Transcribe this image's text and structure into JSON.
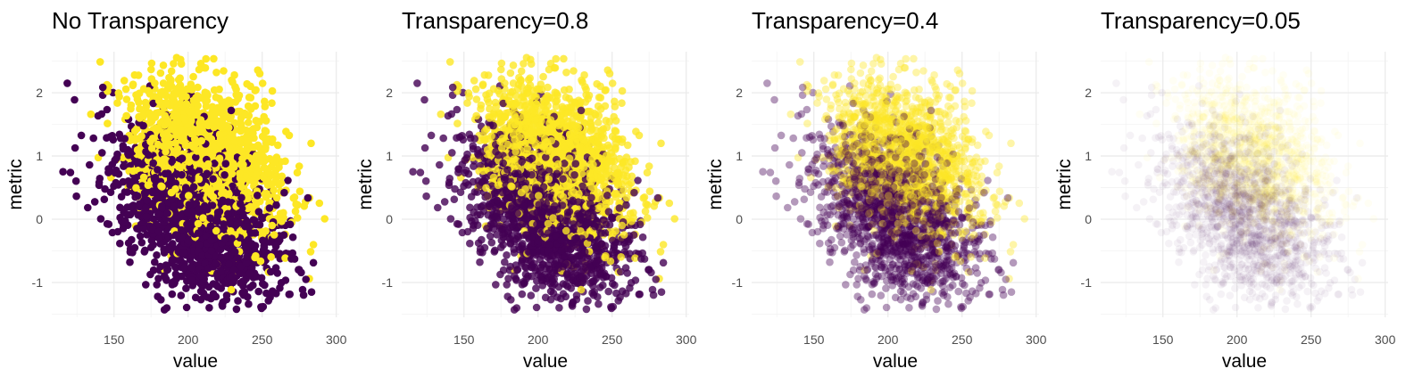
{
  "chart_data": [
    {
      "type": "scatter",
      "title": "No Transparency",
      "xlabel": "value",
      "ylabel": "metric",
      "alpha": 1.0,
      "xlim": [
        108,
        302
      ],
      "ylim": [
        -1.55,
        2.65
      ],
      "x_ticks": [
        150,
        200,
        250,
        300
      ],
      "y_ticks": [
        -1,
        0,
        1,
        2
      ],
      "grid": true,
      "legend": "none",
      "series": [
        {
          "group": "purple",
          "color": "#440154",
          "x_mean": 205,
          "x_sd": 28,
          "y_mean": 0.05,
          "y_sd": 0.72,
          "corr": -0.45,
          "n": 1500
        },
        {
          "group": "yellow",
          "color": "#fde725",
          "x_mean": 212,
          "x_sd": 26,
          "y_mean": 0.95,
          "y_sd": 0.62,
          "corr": -0.35,
          "n": 1500
        }
      ]
    },
    {
      "type": "scatter",
      "title": "Transparency=0.8",
      "xlabel": "value",
      "ylabel": "metric",
      "alpha": 0.8,
      "xlim": [
        108,
        302
      ],
      "ylim": [
        -1.55,
        2.65
      ],
      "x_ticks": [
        150,
        200,
        250,
        300
      ],
      "y_ticks": [
        -1,
        0,
        1,
        2
      ],
      "grid": true,
      "legend": "none",
      "series": [
        {
          "group": "purple",
          "color": "#440154",
          "x_mean": 205,
          "x_sd": 28,
          "y_mean": 0.05,
          "y_sd": 0.72,
          "corr": -0.45,
          "n": 1500
        },
        {
          "group": "yellow",
          "color": "#fde725",
          "x_mean": 212,
          "x_sd": 26,
          "y_mean": 0.95,
          "y_sd": 0.62,
          "corr": -0.35,
          "n": 1500
        }
      ]
    },
    {
      "type": "scatter",
      "title": "Transparency=0.4",
      "xlabel": "value",
      "ylabel": "metric",
      "alpha": 0.4,
      "xlim": [
        108,
        302
      ],
      "ylim": [
        -1.55,
        2.65
      ],
      "x_ticks": [
        150,
        200,
        250,
        300
      ],
      "y_ticks": [
        -1,
        0,
        1,
        2
      ],
      "grid": true,
      "legend": "none",
      "series": [
        {
          "group": "purple",
          "color": "#440154",
          "x_mean": 205,
          "x_sd": 28,
          "y_mean": 0.05,
          "y_sd": 0.72,
          "corr": -0.45,
          "n": 1500
        },
        {
          "group": "yellow",
          "color": "#fde725",
          "x_mean": 212,
          "x_sd": 26,
          "y_mean": 0.95,
          "y_sd": 0.62,
          "corr": -0.35,
          "n": 1500
        }
      ]
    },
    {
      "type": "scatter",
      "title": "Transparency=0.05",
      "xlabel": "value",
      "ylabel": "metric",
      "alpha": 0.05,
      "xlim": [
        108,
        302
      ],
      "ylim": [
        -1.55,
        2.65
      ],
      "x_ticks": [
        150,
        200,
        250,
        300
      ],
      "y_ticks": [
        -1,
        0,
        1,
        2
      ],
      "grid": true,
      "legend": "none",
      "series": [
        {
          "group": "purple",
          "color": "#440154",
          "x_mean": 205,
          "x_sd": 28,
          "y_mean": 0.05,
          "y_sd": 0.72,
          "corr": -0.45,
          "n": 1500
        },
        {
          "group": "yellow",
          "color": "#fde725",
          "x_mean": 212,
          "x_sd": 26,
          "y_mean": 0.95,
          "y_sd": 0.62,
          "corr": -0.35,
          "n": 1500
        }
      ]
    }
  ]
}
